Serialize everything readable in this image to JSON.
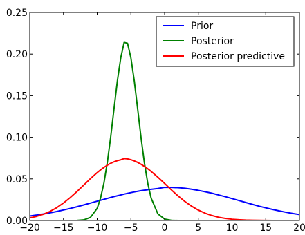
{
  "chart_data": {
    "type": "line",
    "title": "",
    "xlabel": "",
    "ylabel": "",
    "xlim": [
      -20,
      20
    ],
    "ylim": [
      0,
      0.25
    ],
    "x_ticks": [
      -20,
      -15,
      -10,
      -5,
      0,
      5,
      10,
      15,
      20
    ],
    "x_tick_labels": [
      "−20",
      "−15",
      "−10",
      "−5",
      "0",
      "5",
      "10",
      "15",
      "20"
    ],
    "y_ticks": [
      0.0,
      0.05,
      0.1,
      0.15,
      0.2,
      0.25
    ],
    "y_tick_labels": [
      "0.00",
      "0.05",
      "0.10",
      "0.15",
      "0.20",
      "0.25"
    ],
    "grid": false,
    "legend_position": "top-right",
    "x": [
      -20,
      -19,
      -18,
      -17,
      -16,
      -15,
      -14,
      -13,
      -12,
      -11,
      -10,
      -9.5,
      -9,
      -8.5,
      -8,
      -7.5,
      -7,
      -6.5,
      -6,
      -5.5,
      -5,
      -4.5,
      -4,
      -3.5,
      -3,
      -2.5,
      -2,
      -1,
      0,
      1,
      2,
      3,
      4,
      5,
      6,
      7,
      8,
      9,
      10,
      11,
      12,
      13,
      14,
      15,
      16,
      17,
      18,
      19,
      20
    ],
    "series": [
      {
        "name": "Prior",
        "color": "#0000ff",
        "values": [
          0.0054,
          0.0065,
          0.0078,
          0.0092,
          0.0108,
          0.0126,
          0.0145,
          0.0165,
          0.0187,
          0.0209,
          0.0232,
          0.0243,
          0.0254,
          0.0265,
          0.0276,
          0.0287,
          0.0297,
          0.0307,
          0.0317,
          0.0326,
          0.0335,
          0.0343,
          0.0351,
          0.0358,
          0.0364,
          0.037,
          0.0375,
          0.0384,
          0.0399,
          0.0398,
          0.0394,
          0.0387,
          0.0376,
          0.0362,
          0.0346,
          0.0328,
          0.0307,
          0.0286,
          0.0263,
          0.024,
          0.0217,
          0.0194,
          0.0172,
          0.0152,
          0.0133,
          0.0115,
          0.0099,
          0.0084,
          0.0071
        ]
      },
      {
        "name": "Posterior",
        "color": "#008000",
        "values": [
          0.0,
          0.0,
          0.0,
          0.0,
          0.0,
          0.0,
          0.0,
          0.0001,
          0.0007,
          0.0037,
          0.0146,
          0.027,
          0.0449,
          0.0695,
          0.1,
          0.1344,
          0.168,
          0.1956,
          0.214,
          0.213,
          0.1956,
          0.168,
          0.1344,
          0.1,
          0.0695,
          0.0449,
          0.027,
          0.008,
          0.0017,
          0.0002,
          0.0,
          0.0,
          0.0,
          0.0,
          0.0,
          0.0,
          0.0,
          0.0,
          0.0,
          0.0,
          0.0,
          0.0,
          0.0,
          0.0,
          0.0,
          0.0,
          0.0,
          0.0,
          0.0
        ]
      },
      {
        "name": "Posterior predictive",
        "color": "#ff0000",
        "values": [
          0.0031,
          0.0049,
          0.0074,
          0.0109,
          0.0154,
          0.021,
          0.0275,
          0.0348,
          0.0425,
          0.0503,
          0.0575,
          0.0608,
          0.0638,
          0.0664,
          0.0687,
          0.0705,
          0.0719,
          0.0729,
          0.0744,
          0.074,
          0.073,
          0.0716,
          0.0698,
          0.0676,
          0.065,
          0.0621,
          0.059,
          0.052,
          0.0445,
          0.0368,
          0.0295,
          0.0229,
          0.0172,
          0.0125,
          0.0088,
          0.006,
          0.0039,
          0.0025,
          0.0015,
          0.0009,
          0.0005,
          0.0003,
          0.0002,
          0.0001,
          0.0,
          0.0,
          0.0,
          0.0,
          0.0
        ]
      }
    ]
  }
}
